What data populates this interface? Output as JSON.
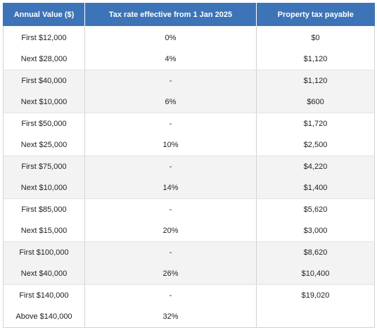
{
  "table": {
    "headers": [
      "Annual Value ($)",
      "Tax rate effective from 1 Jan 2025",
      "Property tax payable"
    ],
    "rows": [
      [
        "First $12,000",
        "0%",
        "$0"
      ],
      [
        "Next $28,000",
        "4%",
        "$1,120"
      ],
      [
        "First $40,000",
        "-",
        "$1,120"
      ],
      [
        "Next $10,000",
        "6%",
        "$600"
      ],
      [
        "First $50,000",
        "-",
        "$1,720"
      ],
      [
        "Next $25,000",
        "10%",
        "$2,500"
      ],
      [
        "First $75,000",
        "-",
        "$4,220"
      ],
      [
        "Next $10,000",
        "14%",
        "$1,400"
      ],
      [
        "First $85,000",
        "-",
        "$5,620"
      ],
      [
        "Next $15,000",
        "20%",
        "$3,000"
      ],
      [
        "First $100,000",
        "-",
        "$8,620"
      ],
      [
        "Next $40,000",
        "26%",
        "$10,400"
      ],
      [
        "First $140,000",
        "-",
        "$19,020"
      ],
      [
        "Above $140,000",
        "32%",
        ""
      ]
    ]
  },
  "colors": {
    "header_background": "#3d74b8",
    "header_text": "#ffffff",
    "shaded_row_background": "#f3f3f3",
    "border": "#d3d3d3"
  }
}
